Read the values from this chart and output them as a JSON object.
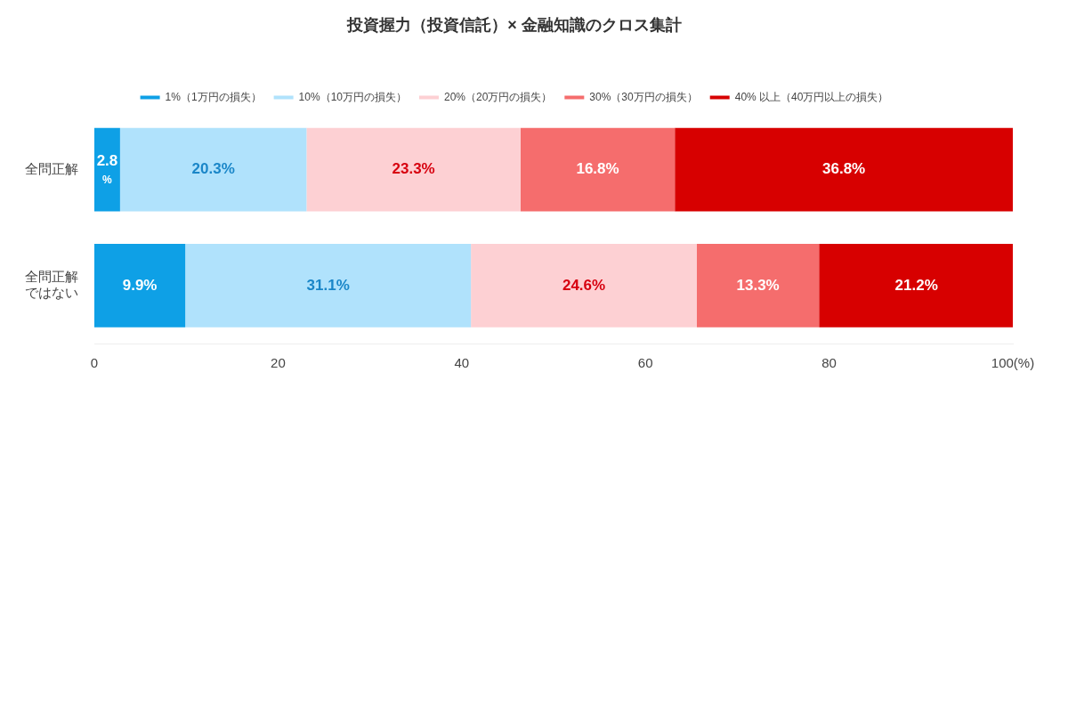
{
  "chart_data": {
    "type": "bar",
    "orientation": "horizontal",
    "stacked": true,
    "title": "投資握力（投資信託）× 金融知識のクロス集計",
    "categories": [
      "全問正解",
      "全問正解ではない"
    ],
    "series": [
      {
        "name": "1%（1万円の損失）",
        "color": "#0ea0e6",
        "values": [
          2.8,
          9.9
        ],
        "value_labels": [
          "2.8%",
          "9.9%"
        ]
      },
      {
        "name": "10%（10万円の損失）",
        "color": "#b0e2fc",
        "values": [
          20.3,
          31.1
        ],
        "value_labels": [
          "20.3%",
          "31.1%"
        ]
      },
      {
        "name": "20%（20万円の損失）",
        "color": "#fdd0d3",
        "values": [
          23.3,
          24.6
        ],
        "value_labels": [
          "23.3%",
          "24.6%"
        ]
      },
      {
        "name": "30%（30万円の損失）",
        "color": "#f56d6d",
        "values": [
          16.8,
          13.3
        ],
        "value_labels": [
          "16.8%",
          "13.3%"
        ]
      },
      {
        "name": "40% 以上（40万円以上の損失）",
        "color": "#d70000",
        "values": [
          36.8,
          21.2
        ],
        "value_labels": [
          "36.8%",
          "21.2%"
        ]
      }
    ],
    "xlim": [
      0,
      100
    ],
    "xticks": [
      0,
      20,
      40,
      60,
      80,
      {
        "value": 100,
        "label": "100(%)"
      }
    ],
    "grid": false,
    "legend": "top"
  }
}
